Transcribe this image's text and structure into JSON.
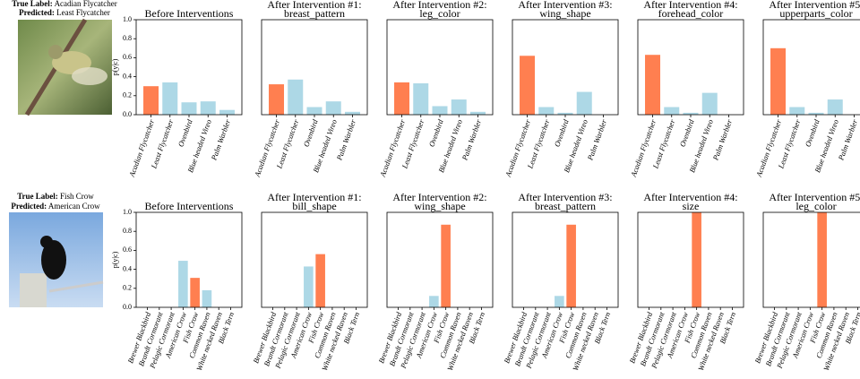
{
  "examples": [
    {
      "true_key": "True Label:",
      "true_label": "Acadian Flycatcher",
      "pred_key": "Predicted:",
      "predicted": "Least Flycatcher"
    },
    {
      "true_key": "True Label:",
      "true_label": "Fish Crow",
      "pred_key": "Predicted:",
      "predicted": "American Crow"
    }
  ],
  "chart_data": [
    {
      "type": "bar",
      "title": "Before Interventions",
      "ylabel": "p(y|c)",
      "categories": [
        "Acadian Flycatcher",
        "Least Flycatcher",
        "Ovenbird",
        "Blue headed Vireo",
        "Palm Warbler"
      ],
      "values": [
        0.3,
        0.34,
        0.13,
        0.14,
        0.05
      ],
      "colors": [
        "#ff7f50",
        "#add8e6",
        "#add8e6",
        "#add8e6",
        "#add8e6"
      ],
      "ylim": [
        0,
        1
      ],
      "yticks": [
        {
          "value": 0,
          "label": "0.0"
        },
        0.2,
        0.4,
        0.6,
        0.8,
        {
          "value": 1,
          "label": "1.0"
        }
      ]
    },
    {
      "type": "bar",
      "title": "After Intervention #1:",
      "subtitle": "breast_pattern",
      "categories": [
        "Acadian Flycatcher",
        "Least Flycatcher",
        "Ovenbird",
        "Blue headed Vireo",
        "Palm Warbler"
      ],
      "values": [
        0.32,
        0.37,
        0.08,
        0.14,
        0.03
      ],
      "colors": [
        "#ff7f50",
        "#add8e6",
        "#add8e6",
        "#add8e6",
        "#add8e6"
      ],
      "ylim": [
        0,
        1
      ]
    },
    {
      "type": "bar",
      "title": "After Intervention #2:",
      "subtitle": "leg_color",
      "categories": [
        "Acadian Flycatcher",
        "Least Flycatcher",
        "Ovenbird",
        "Blue headed Vireo",
        "Palm Warbler"
      ],
      "values": [
        0.34,
        0.33,
        0.09,
        0.16,
        0.03
      ],
      "colors": [
        "#ff7f50",
        "#add8e6",
        "#add8e6",
        "#add8e6",
        "#add8e6"
      ],
      "ylim": [
        0,
        1
      ]
    },
    {
      "type": "bar",
      "title": "After Intervention #3:",
      "subtitle": "wing_shape",
      "categories": [
        "Acadian Flycatcher",
        "Least Flycatcher",
        "Ovenbird",
        "Blue headed Vireo",
        "Palm Warbler"
      ],
      "values": [
        0.62,
        0.08,
        0.02,
        0.24,
        0.0
      ],
      "colors": [
        "#ff7f50",
        "#add8e6",
        "#add8e6",
        "#add8e6",
        "#add8e6"
      ],
      "ylim": [
        0,
        1
      ]
    },
    {
      "type": "bar",
      "title": "After Intervention #4:",
      "subtitle": "forehead_color",
      "categories": [
        "Acadian Flycatcher",
        "Least Flycatcher",
        "Ovenbird",
        "Blue headed Vireo",
        "Palm Warbler"
      ],
      "values": [
        0.63,
        0.08,
        0.02,
        0.23,
        0.0
      ],
      "colors": [
        "#ff7f50",
        "#add8e6",
        "#add8e6",
        "#add8e6",
        "#add8e6"
      ],
      "ylim": [
        0,
        1
      ]
    },
    {
      "type": "bar",
      "title": "After Intervention #5:",
      "subtitle": "upperparts_color",
      "categories": [
        "Acadian Flycatcher",
        "Least Flycatcher",
        "Ovenbird",
        "Blue headed Vireo",
        "Palm Warbler"
      ],
      "values": [
        0.7,
        0.08,
        0.02,
        0.16,
        0.0
      ],
      "colors": [
        "#ff7f50",
        "#add8e6",
        "#add8e6",
        "#add8e6",
        "#add8e6"
      ],
      "ylim": [
        0,
        1
      ]
    },
    {
      "type": "bar",
      "title": "Before Interventions",
      "ylabel": "p(y|c)",
      "categories": [
        "Brewer Blackbird",
        "Brandt Cormorant",
        "Pelagic Cormorant",
        "American Crow",
        "Fish Crow",
        "Common Raven",
        "White necked Raven",
        "Black Tern"
      ],
      "values": [
        0,
        0,
        0,
        0.49,
        0.31,
        0.18,
        0,
        0
      ],
      "colors": [
        "#add8e6",
        "#add8e6",
        "#add8e6",
        "#add8e6",
        "#ff7f50",
        "#add8e6",
        "#add8e6",
        "#add8e6"
      ],
      "ylim": [
        0,
        1
      ],
      "yticks": [
        {
          "value": 0,
          "label": "0.0"
        },
        0.2,
        0.4,
        0.6,
        0.8,
        {
          "value": 1,
          "label": "1.0"
        }
      ]
    },
    {
      "type": "bar",
      "title": "After Intervention #1:",
      "subtitle": "bill_shape",
      "categories": [
        "Brewer Blackbird",
        "Brandt Cormorant",
        "Pelagic Cormorant",
        "American Crow",
        "Fish Crow",
        "Common Raven",
        "White necked Raven",
        "Black Tern"
      ],
      "values": [
        0,
        0,
        0,
        0.43,
        0.56,
        0,
        0,
        0
      ],
      "colors": [
        "#add8e6",
        "#add8e6",
        "#add8e6",
        "#add8e6",
        "#ff7f50",
        "#add8e6",
        "#add8e6",
        "#add8e6"
      ],
      "ylim": [
        0,
        1
      ]
    },
    {
      "type": "bar",
      "title": "After Intervention #2:",
      "subtitle": "wing_shape",
      "categories": [
        "Brewer Blackbird",
        "Brandt Cormorant",
        "Pelagic Cormorant",
        "American Crow",
        "Fish Crow",
        "Common Raven",
        "White necked Raven",
        "Black Tern"
      ],
      "values": [
        0,
        0,
        0,
        0.12,
        0.87,
        0,
        0,
        0
      ],
      "colors": [
        "#add8e6",
        "#add8e6",
        "#add8e6",
        "#add8e6",
        "#ff7f50",
        "#add8e6",
        "#add8e6",
        "#add8e6"
      ],
      "ylim": [
        0,
        1
      ]
    },
    {
      "type": "bar",
      "title": "After Intervention #3:",
      "subtitle": "breast_pattern",
      "categories": [
        "Brewer Blackbird",
        "Brandt Cormorant",
        "Pelagic Cormorant",
        "American Crow",
        "Fish Crow",
        "Common Raven",
        "White necked Raven",
        "Black Tern"
      ],
      "values": [
        0,
        0,
        0,
        0.12,
        0.87,
        0,
        0,
        0
      ],
      "colors": [
        "#add8e6",
        "#add8e6",
        "#add8e6",
        "#add8e6",
        "#ff7f50",
        "#add8e6",
        "#add8e6",
        "#add8e6"
      ],
      "ylim": [
        0,
        1
      ]
    },
    {
      "type": "bar",
      "title": "After Intervention #4:",
      "subtitle": "size",
      "categories": [
        "Brewer Blackbird",
        "Brandt Cormorant",
        "Pelagic Cormorant",
        "American Crow",
        "Fish Crow",
        "Common Raven",
        "White necked Raven",
        "Black Tern"
      ],
      "values": [
        0,
        0,
        0,
        0,
        1.0,
        0,
        0,
        0
      ],
      "colors": [
        "#add8e6",
        "#add8e6",
        "#add8e6",
        "#add8e6",
        "#ff7f50",
        "#add8e6",
        "#add8e6",
        "#add8e6"
      ],
      "ylim": [
        0,
        1
      ]
    },
    {
      "type": "bar",
      "title": "After Intervention #5:",
      "subtitle": "leg_color",
      "categories": [
        "Brewer Blackbird",
        "Brandt Cormorant",
        "Pelagic Cormorant",
        "American Crow",
        "Fish Crow",
        "Common Raven",
        "White necked Raven",
        "Black Tern"
      ],
      "values": [
        0,
        0,
        0,
        0,
        1.0,
        0,
        0,
        0
      ],
      "colors": [
        "#add8e6",
        "#add8e6",
        "#add8e6",
        "#add8e6",
        "#ff7f50",
        "#add8e6",
        "#add8e6",
        "#add8e6"
      ],
      "ylim": [
        0,
        1
      ]
    }
  ]
}
